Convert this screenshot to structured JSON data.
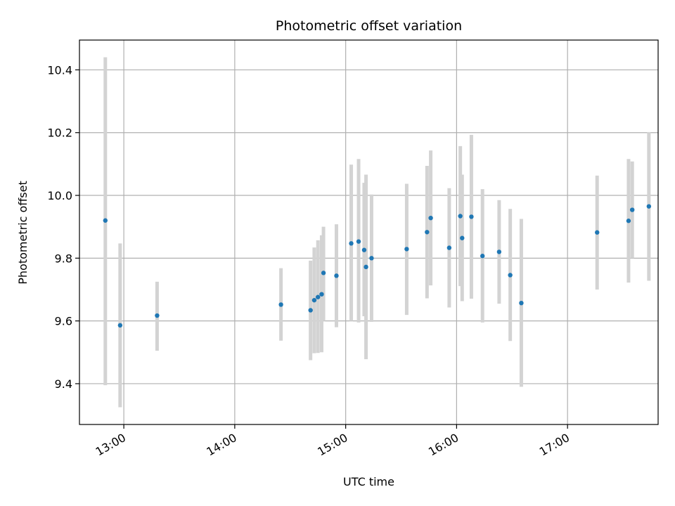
{
  "chart_data": {
    "type": "scatter",
    "title": "Photometric offset variation",
    "xlabel": "UTC time",
    "ylabel": "Photometric offset",
    "x_range": [
      "12:36",
      "17:49"
    ],
    "ylim": [
      9.27,
      10.495
    ],
    "x_ticks": [
      "13:00",
      "14:00",
      "15:00",
      "16:00",
      "17:00"
    ],
    "y_ticks": [
      9.4,
      9.6,
      9.8,
      10.0,
      10.2,
      10.4
    ],
    "y_tick_labels": [
      "9.4",
      "9.6",
      "9.8",
      "10.0",
      "10.2",
      "10.4"
    ],
    "grid": true,
    "colors": {
      "point": "#1f77b4",
      "errorbar": "#d3d3d3",
      "grid": "#b0b0b0"
    },
    "points": [
      {
        "x": "12:50",
        "y": 9.92,
        "ylow": 9.395,
        "yhigh": 10.44
      },
      {
        "x": "12:58",
        "y": 9.586,
        "ylow": 9.325,
        "yhigh": 9.847
      },
      {
        "x": "13:18",
        "y": 9.617,
        "ylow": 9.505,
        "yhigh": 9.725
      },
      {
        "x": "14:25",
        "y": 9.652,
        "ylow": 9.537,
        "yhigh": 9.768
      },
      {
        "x": "14:41",
        "y": 9.634,
        "ylow": 9.475,
        "yhigh": 9.792
      },
      {
        "x": "14:43",
        "y": 9.666,
        "ylow": 9.497,
        "yhigh": 9.834
      },
      {
        "x": "14:45",
        "y": 9.676,
        "ylow": 9.498,
        "yhigh": 9.857
      },
      {
        "x": "14:47",
        "y": 9.685,
        "ylow": 9.5,
        "yhigh": 9.873
      },
      {
        "x": "14:48",
        "y": 9.753,
        "ylow": 9.6,
        "yhigh": 9.9
      },
      {
        "x": "14:55",
        "y": 9.744,
        "ylow": 9.58,
        "yhigh": 9.908
      },
      {
        "x": "15:03",
        "y": 9.847,
        "ylow": 9.6,
        "yhigh": 10.098
      },
      {
        "x": "15:07",
        "y": 9.853,
        "ylow": 9.595,
        "yhigh": 10.116
      },
      {
        "x": "15:10",
        "y": 9.826,
        "ylow": 9.615,
        "yhigh": 10.04
      },
      {
        "x": "15:11",
        "y": 9.772,
        "ylow": 9.478,
        "yhigh": 10.066
      },
      {
        "x": "15:14",
        "y": 9.8,
        "ylow": 9.597,
        "yhigh": 10.003
      },
      {
        "x": "15:33",
        "y": 9.829,
        "ylow": 9.619,
        "yhigh": 10.037
      },
      {
        "x": "15:44",
        "y": 9.883,
        "ylow": 9.672,
        "yhigh": 10.094
      },
      {
        "x": "15:46",
        "y": 9.928,
        "ylow": 9.713,
        "yhigh": 10.143
      },
      {
        "x": "15:56",
        "y": 9.833,
        "ylow": 9.643,
        "yhigh": 10.023
      },
      {
        "x": "16:02",
        "y": 9.934,
        "ylow": 9.711,
        "yhigh": 10.157
      },
      {
        "x": "16:03",
        "y": 9.864,
        "ylow": 9.663,
        "yhigh": 10.066
      },
      {
        "x": "16:08",
        "y": 9.932,
        "ylow": 9.671,
        "yhigh": 10.193
      },
      {
        "x": "16:14",
        "y": 9.807,
        "ylow": 9.595,
        "yhigh": 10.02
      },
      {
        "x": "16:23",
        "y": 9.82,
        "ylow": 9.655,
        "yhigh": 9.985
      },
      {
        "x": "16:29",
        "y": 9.746,
        "ylow": 9.536,
        "yhigh": 9.957
      },
      {
        "x": "16:35",
        "y": 9.657,
        "ylow": 9.39,
        "yhigh": 9.925
      },
      {
        "x": "17:16",
        "y": 9.882,
        "ylow": 9.7,
        "yhigh": 10.063
      },
      {
        "x": "17:33",
        "y": 9.919,
        "ylow": 9.722,
        "yhigh": 10.116
      },
      {
        "x": "17:35",
        "y": 9.954,
        "ylow": 9.8,
        "yhigh": 10.108
      },
      {
        "x": "17:44",
        "y": 9.965,
        "ylow": 9.728,
        "yhigh": 10.202
      }
    ]
  }
}
